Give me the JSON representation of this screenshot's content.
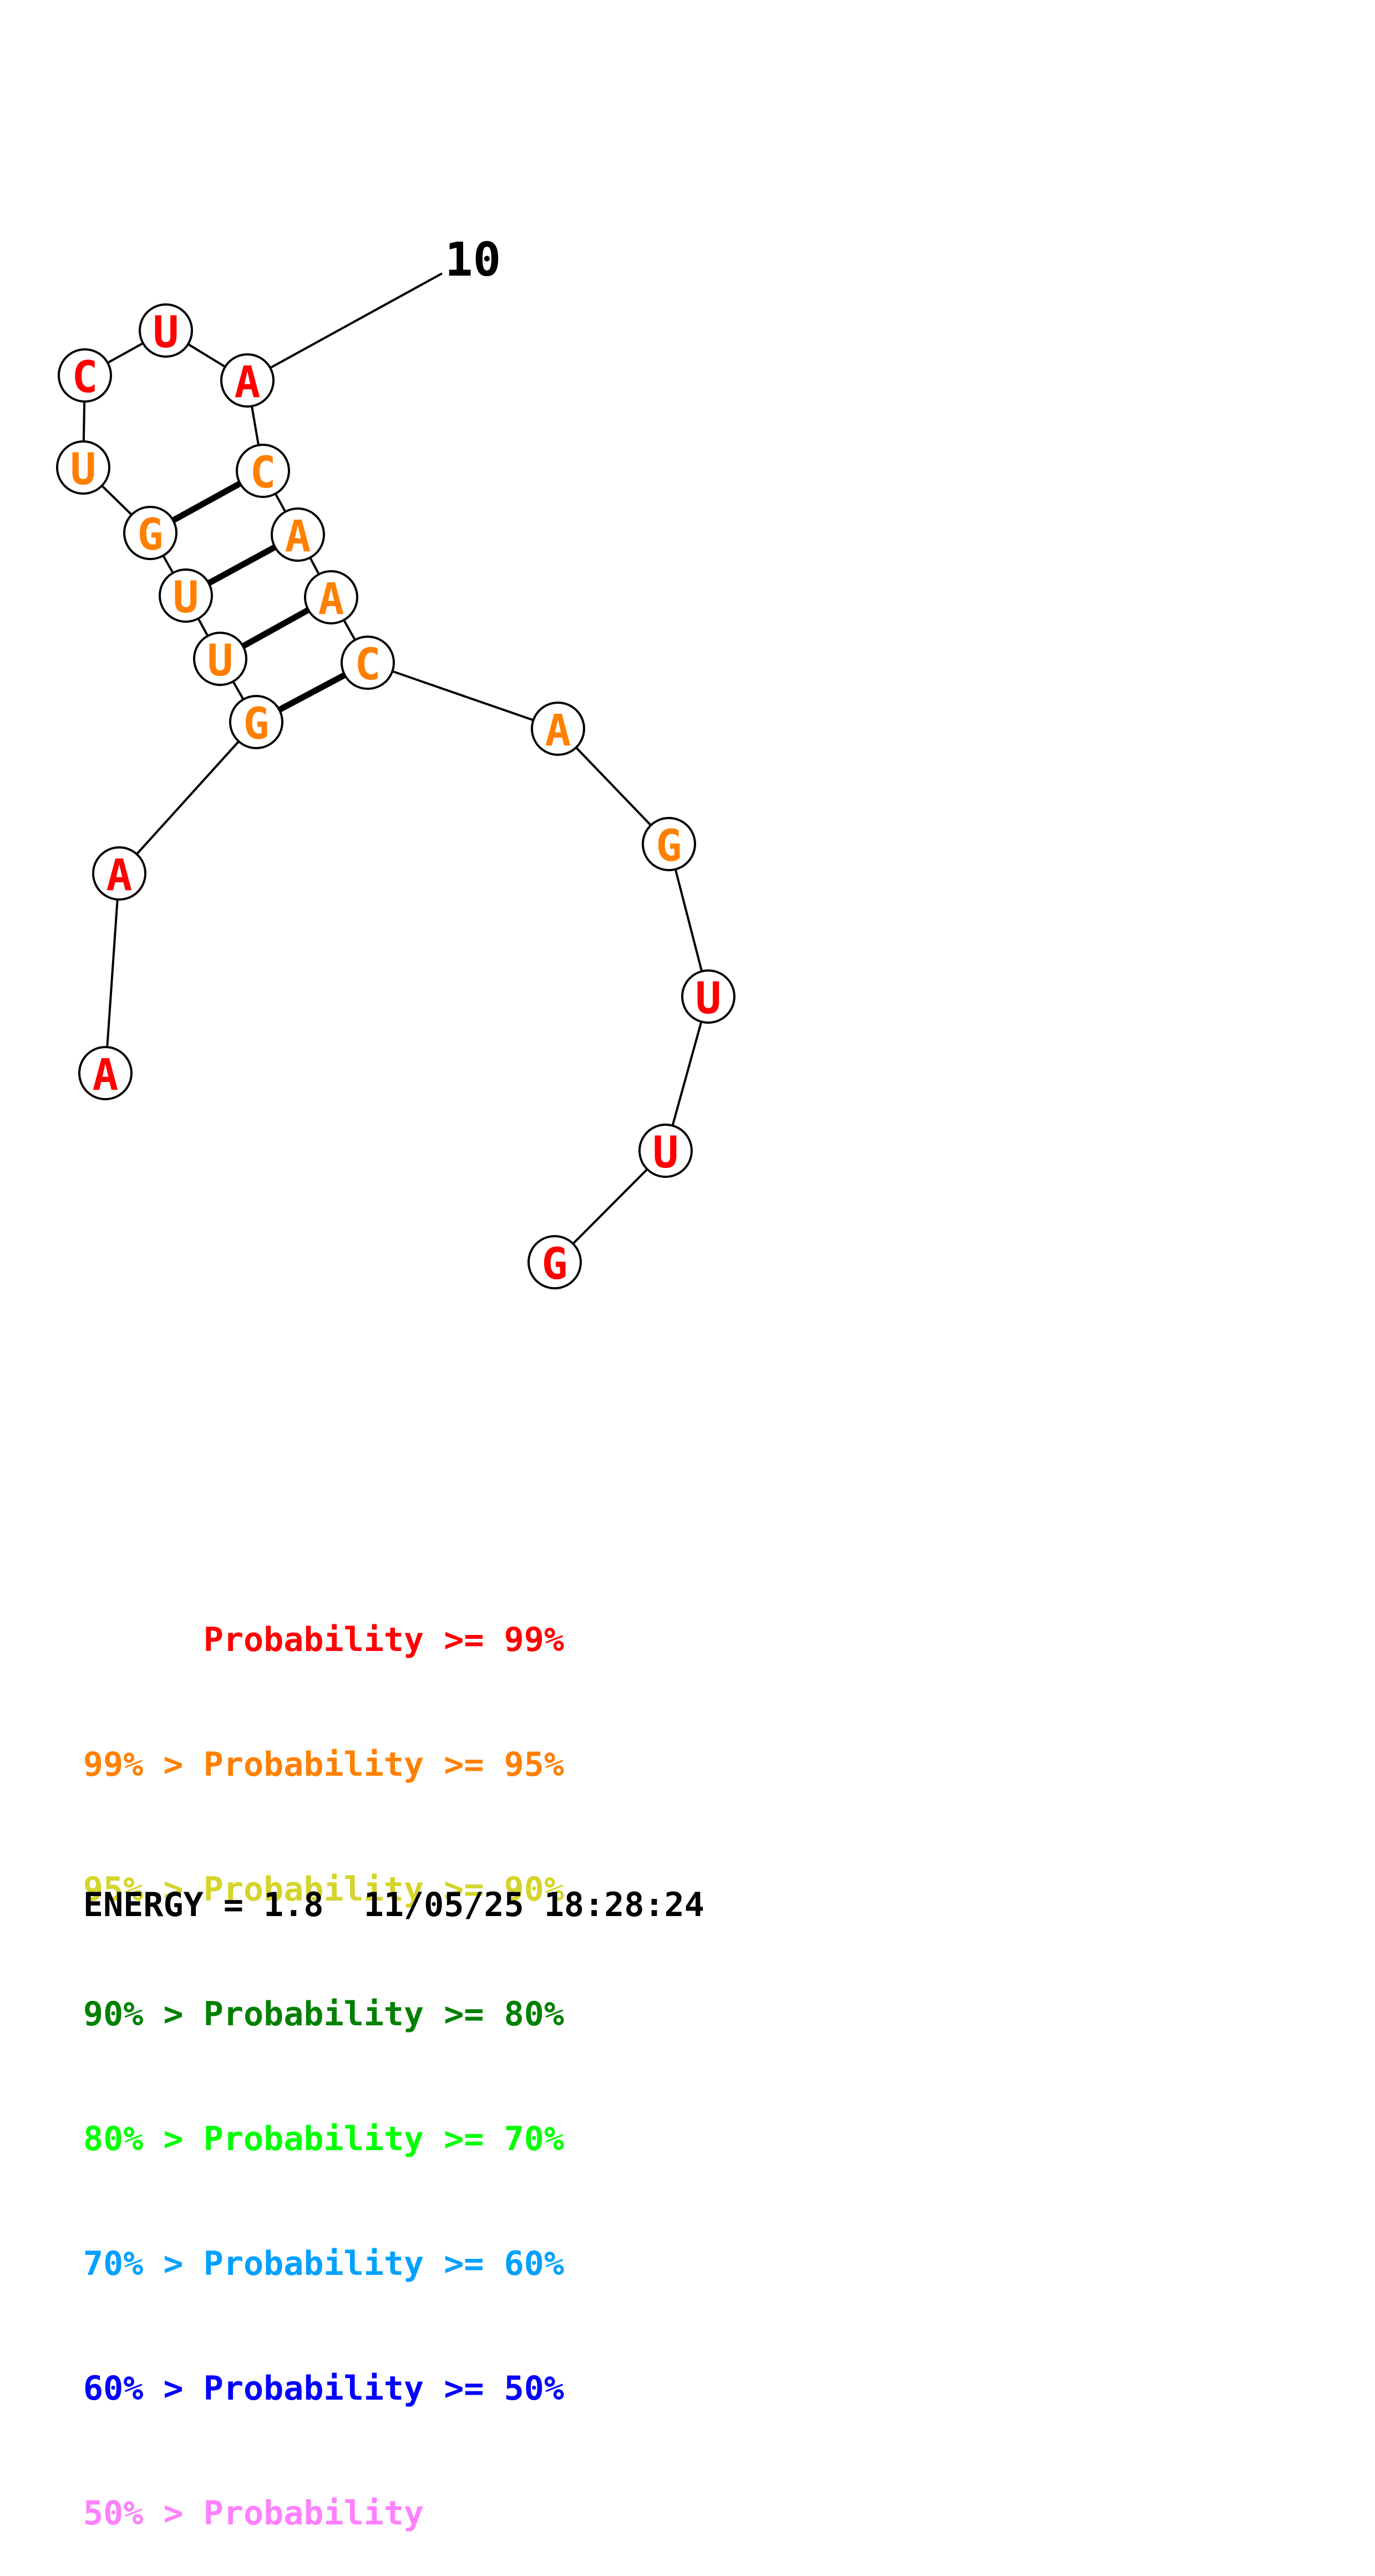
{
  "structure": {
    "index_label": "10",
    "colors": {
      "red": "#ff0000",
      "orange": "#ff8000",
      "backbone": "#000000",
      "node_fill": "#ffffff"
    },
    "nucleotides": [
      {
        "letter": "A",
        "color": "red"
      },
      {
        "letter": "A",
        "color": "red"
      },
      {
        "letter": "G",
        "color": "orange"
      },
      {
        "letter": "U",
        "color": "orange"
      },
      {
        "letter": "U",
        "color": "orange"
      },
      {
        "letter": "G",
        "color": "orange"
      },
      {
        "letter": "U",
        "color": "orange"
      },
      {
        "letter": "C",
        "color": "red"
      },
      {
        "letter": "U",
        "color": "red"
      },
      {
        "letter": "A",
        "color": "red"
      },
      {
        "letter": "C",
        "color": "orange"
      },
      {
        "letter": "A",
        "color": "orange"
      },
      {
        "letter": "A",
        "color": "orange"
      },
      {
        "letter": "C",
        "color": "orange"
      },
      {
        "letter": "A",
        "color": "orange"
      },
      {
        "letter": "G",
        "color": "orange"
      },
      {
        "letter": "U",
        "color": "red"
      },
      {
        "letter": "U",
        "color": "red"
      },
      {
        "letter": "G",
        "color": "red"
      }
    ],
    "base_pairs": [
      [
        2,
        13
      ],
      [
        3,
        12
      ],
      [
        4,
        11
      ],
      [
        5,
        10
      ]
    ]
  },
  "legend": {
    "lines": [
      {
        "text": "      Probability >= 99%",
        "color": "#ff0000"
      },
      {
        "text": "99% > Probability >= 95%",
        "color": "#ff8000"
      },
      {
        "text": "95% > Probability >= 90%",
        "color": "#d4d42a"
      },
      {
        "text": "90% > Probability >= 80%",
        "color": "#008000"
      },
      {
        "text": "80% > Probability >= 70%",
        "color": "#00ff00"
      },
      {
        "text": "70% > Probability >= 60%",
        "color": "#00a0ff"
      },
      {
        "text": "60% > Probability >= 50%",
        "color": "#0000ff"
      },
      {
        "text": "50% > Probability",
        "color": "#ff80ff"
      }
    ]
  },
  "energy_text": "ENERGY = 1.8  11/05/25 18:28:24"
}
